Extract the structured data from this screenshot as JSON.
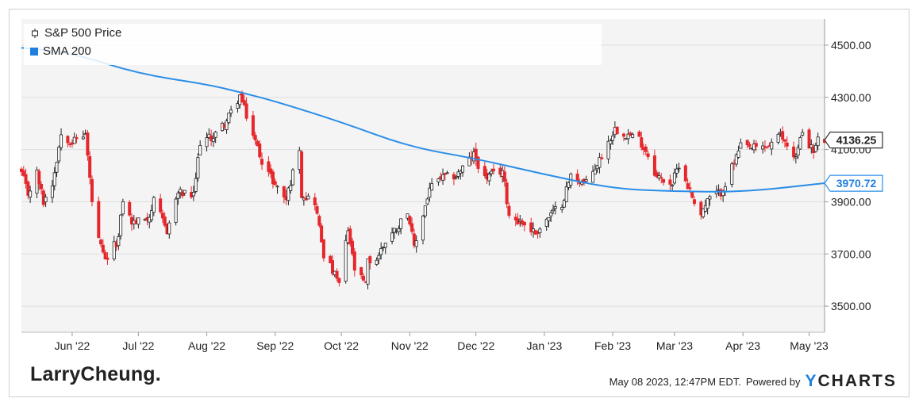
{
  "legend": {
    "price_label": "S&P 500 Price",
    "sma_label": "SMA 200"
  },
  "colors": {
    "up": "#222222",
    "down": "#e5262b",
    "sma": "#2b8ee8",
    "grid": "#dddddd",
    "plot_bg": "#f4f4f4"
  },
  "chart_data": {
    "type": "candlestick",
    "title": "",
    "ylim": [
      3400,
      4600
    ],
    "y_ticks": [
      "3500.00",
      "3700.00",
      "3900.00",
      "4100.00",
      "4300.00",
      "4500.00"
    ],
    "y_tick_values": [
      3500,
      3700,
      3900,
      4100,
      4300,
      4500
    ],
    "x_tick_labels": [
      "Jun '22",
      "Jul '22",
      "Aug '22",
      "Sep '22",
      "Oct '22",
      "Nov '22",
      "Dec '22",
      "Jan '23",
      "Feb '23",
      "Mar '23",
      "Apr '23",
      "May '23"
    ],
    "x_tick_dates": [
      "2022-06-01",
      "2022-07-01",
      "2022-08-01",
      "2022-09-01",
      "2022-10-01",
      "2022-11-01",
      "2022-12-01",
      "2023-01-01",
      "2023-02-01",
      "2023-03-01",
      "2023-04-01",
      "2023-05-01"
    ],
    "x_range": [
      "2022-05-09",
      "2023-05-08"
    ],
    "price_close_path": [
      [
        "2022-05-09",
        4010
      ],
      [
        "2022-05-12",
        3930
      ],
      [
        "2022-05-16",
        4010
      ],
      [
        "2022-05-19",
        3900
      ],
      [
        "2022-05-23",
        3970
      ],
      [
        "2022-05-27",
        4160
      ],
      [
        "2022-06-01",
        4130
      ],
      [
        "2022-06-07",
        4160
      ],
      [
        "2022-06-10",
        3900
      ],
      [
        "2022-06-13",
        3750
      ],
      [
        "2022-06-16",
        3670
      ],
      [
        "2022-06-22",
        3760
      ],
      [
        "2022-06-24",
        3910
      ],
      [
        "2022-06-28",
        3820
      ],
      [
        "2022-07-01",
        3825
      ],
      [
        "2022-07-06",
        3845
      ],
      [
        "2022-07-08",
        3900
      ],
      [
        "2022-07-14",
        3790
      ],
      [
        "2022-07-19",
        3935
      ],
      [
        "2022-07-26",
        3920
      ],
      [
        "2022-07-29",
        4130
      ],
      [
        "2022-08-04",
        4150
      ],
      [
        "2022-08-10",
        4210
      ],
      [
        "2022-08-16",
        4305
      ],
      [
        "2022-08-19",
        4230
      ],
      [
        "2022-08-23",
        4130
      ],
      [
        "2022-08-26",
        4060
      ],
      [
        "2022-09-01",
        3965
      ],
      [
        "2022-09-06",
        3910
      ],
      [
        "2022-09-12",
        4110
      ],
      [
        "2022-09-13",
        3930
      ],
      [
        "2022-09-19",
        3900
      ],
      [
        "2022-09-23",
        3700
      ],
      [
        "2022-09-30",
        3585
      ],
      [
        "2022-10-04",
        3790
      ],
      [
        "2022-10-07",
        3640
      ],
      [
        "2022-10-12",
        3580
      ],
      [
        "2022-10-13",
        3670
      ],
      [
        "2022-10-17",
        3680
      ],
      [
        "2022-10-21",
        3750
      ],
      [
        "2022-10-27",
        3810
      ],
      [
        "2022-10-31",
        3870
      ],
      [
        "2022-11-03",
        3720
      ],
      [
        "2022-11-10",
        3950
      ],
      [
        "2022-11-15",
        3990
      ],
      [
        "2022-11-22",
        4000
      ],
      [
        "2022-11-30",
        4080
      ],
      [
        "2022-12-05",
        3990
      ],
      [
        "2022-12-13",
        4020
      ],
      [
        "2022-12-16",
        3850
      ],
      [
        "2022-12-22",
        3820
      ],
      [
        "2022-12-28",
        3780
      ],
      [
        "2023-01-04",
        3850
      ],
      [
        "2023-01-09",
        3895
      ],
      [
        "2023-01-13",
        3999
      ],
      [
        "2023-01-20",
        3970
      ],
      [
        "2023-01-26",
        4060
      ],
      [
        "2023-02-02",
        4180
      ],
      [
        "2023-02-07",
        4160
      ],
      [
        "2023-02-13",
        4140
      ],
      [
        "2023-02-17",
        4080
      ],
      [
        "2023-02-21",
        3995
      ],
      [
        "2023-02-28",
        3970
      ],
      [
        "2023-03-03",
        4045
      ],
      [
        "2023-03-09",
        3920
      ],
      [
        "2023-03-13",
        3855
      ],
      [
        "2023-03-17",
        3915
      ],
      [
        "2023-03-22",
        3937
      ],
      [
        "2023-03-24",
        3970
      ],
      [
        "2023-03-31",
        4110
      ],
      [
        "2023-04-06",
        4105
      ],
      [
        "2023-04-12",
        4110
      ],
      [
        "2023-04-18",
        4154
      ],
      [
        "2023-04-25",
        4070
      ],
      [
        "2023-04-28",
        4170
      ],
      [
        "2023-05-03",
        4090
      ],
      [
        "2023-05-05",
        4136
      ]
    ],
    "sma200": [
      [
        "2022-05-09",
        4490
      ],
      [
        "2022-06-01",
        4470
      ],
      [
        "2022-07-01",
        4390
      ],
      [
        "2022-08-01",
        4350
      ],
      [
        "2022-08-16",
        4320
      ],
      [
        "2022-09-01",
        4285
      ],
      [
        "2022-10-01",
        4205
      ],
      [
        "2022-11-01",
        4110
      ],
      [
        "2022-12-01",
        4065
      ],
      [
        "2023-01-01",
        4005
      ],
      [
        "2023-02-01",
        3950
      ],
      [
        "2023-03-01",
        3940
      ],
      [
        "2023-04-01",
        3937
      ],
      [
        "2023-05-08",
        3971
      ]
    ],
    "last_price_label": "4136.25",
    "last_sma_label": "3970.72",
    "last_price": 4136.25,
    "last_sma": 3970.72
  },
  "footer": {
    "brand": "LarryCheung.",
    "timestamp": "May 08 2023, 12:47PM EDT.",
    "powered_by": "Powered by",
    "ycharts_y": "Y",
    "ycharts_rest": "CHARTS"
  }
}
